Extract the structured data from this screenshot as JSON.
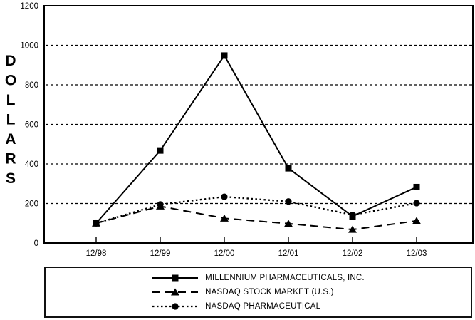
{
  "page": {
    "background": "#ffffff",
    "foreground": "#000000"
  },
  "chart_data": {
    "type": "line",
    "title": "",
    "ylabel": "DOLLARS",
    "xlabel": "",
    "categories": [
      "12/98",
      "12/99",
      "12/00",
      "12/01",
      "12/02",
      "12/03"
    ],
    "series": [
      {
        "name": "MILLENNIUM PHARMACEUTICALS, INC.",
        "line_style": "solid",
        "marker": "square",
        "values": [
          100,
          468,
          948,
          378,
          135,
          283
        ]
      },
      {
        "name": "NASDAQ STOCK MARKET (U.S.)",
        "line_style": "long-dash",
        "marker": "triangle",
        "values": [
          100,
          186,
          125,
          98,
          68,
          112
        ]
      },
      {
        "name": "NASDAQ PHARMACEUTICAL",
        "line_style": "dotted",
        "marker": "circle",
        "values": [
          100,
          195,
          234,
          210,
          142,
          202
        ]
      }
    ],
    "ylim": [
      0,
      1200
    ],
    "yticks": [
      0,
      200,
      400,
      600,
      800,
      1000,
      1200
    ],
    "grid": "horizontal-dashed",
    "grid_levels": [
      200,
      400,
      600,
      800,
      1000
    ],
    "legend_position": "bottom-box",
    "line_color": "#000000"
  }
}
